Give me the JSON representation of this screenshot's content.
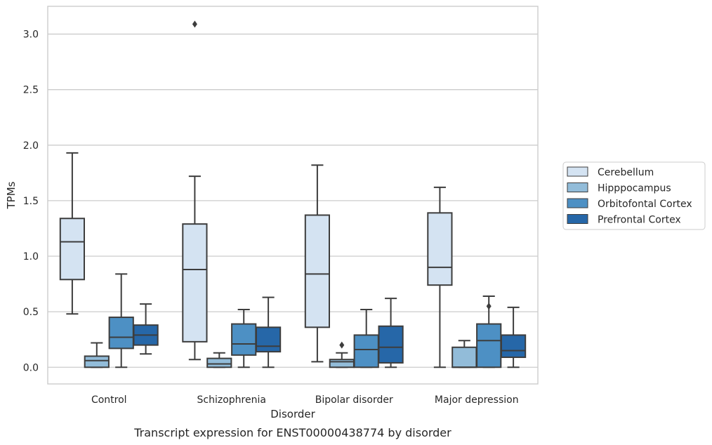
{
  "chart_data": {
    "type": "boxplot",
    "title": "",
    "caption": "Transcript expression for ENST00000438774 by disorder",
    "xlabel": "Disorder",
    "ylabel": "TPMs",
    "ylim": [
      -0.15,
      3.25
    ],
    "yticks": [
      "0.0",
      "0.5",
      "1.0",
      "1.5",
      "2.0",
      "2.5",
      "3.0"
    ],
    "ytick_values": [
      0,
      0.5,
      1.0,
      1.5,
      2.0,
      2.5,
      3.0
    ],
    "grid": "horizontal",
    "legend_position": "right",
    "categories": [
      "Control",
      "Schizophrenia",
      "Bipolar disorder",
      "Major depression"
    ],
    "series": [
      {
        "name": "Cerebellum",
        "color": "#d4e3f2",
        "boxes": [
          {
            "whislo": 0.48,
            "q1": 0.79,
            "med": 1.13,
            "q3": 1.34,
            "whishi": 1.93,
            "fliers": []
          },
          {
            "whislo": 0.07,
            "q1": 0.23,
            "med": 0.88,
            "q3": 1.29,
            "whishi": 1.72,
            "fliers": [
              3.09
            ]
          },
          {
            "whislo": 0.05,
            "q1": 0.36,
            "med": 0.84,
            "q3": 1.37,
            "whishi": 1.82,
            "fliers": []
          },
          {
            "whislo": 0.0,
            "q1": 0.74,
            "med": 0.9,
            "q3": 1.39,
            "whishi": 1.62,
            "fliers": []
          }
        ]
      },
      {
        "name": "Hipppocampus",
        "color": "#92bcd9",
        "boxes": [
          {
            "whislo": 0.0,
            "q1": 0.0,
            "med": 0.06,
            "q3": 0.1,
            "whishi": 0.22,
            "fliers": []
          },
          {
            "whislo": 0.0,
            "q1": 0.0,
            "med": 0.03,
            "q3": 0.08,
            "whishi": 0.13,
            "fliers": []
          },
          {
            "whislo": 0.0,
            "q1": 0.0,
            "med": 0.05,
            "q3": 0.07,
            "whishi": 0.13,
            "fliers": [
              0.2
            ]
          },
          {
            "whislo": 0.0,
            "q1": 0.0,
            "med": 0.0,
            "q3": 0.18,
            "whishi": 0.24,
            "fliers": []
          }
        ]
      },
      {
        "name": "Orbitofontal Cortex",
        "color": "#4d90c4",
        "boxes": [
          {
            "whislo": 0.0,
            "q1": 0.17,
            "med": 0.27,
            "q3": 0.45,
            "whishi": 0.84,
            "fliers": []
          },
          {
            "whislo": 0.0,
            "q1": 0.11,
            "med": 0.21,
            "q3": 0.39,
            "whishi": 0.52,
            "fliers": []
          },
          {
            "whislo": 0.0,
            "q1": 0.0,
            "med": 0.16,
            "q3": 0.29,
            "whishi": 0.52,
            "fliers": []
          },
          {
            "whislo": 0.0,
            "q1": 0.0,
            "med": 0.24,
            "q3": 0.39,
            "whishi": 0.64,
            "fliers": [
              0.55
            ]
          }
        ]
      },
      {
        "name": "Prefrontal Cortex",
        "color": "#2667a8",
        "boxes": [
          {
            "whislo": 0.12,
            "q1": 0.2,
            "med": 0.29,
            "q3": 0.38,
            "whishi": 0.57,
            "fliers": []
          },
          {
            "whislo": 0.0,
            "q1": 0.14,
            "med": 0.19,
            "q3": 0.36,
            "whishi": 0.63,
            "fliers": []
          },
          {
            "whislo": 0.0,
            "q1": 0.04,
            "med": 0.18,
            "q3": 0.37,
            "whishi": 0.62,
            "fliers": []
          },
          {
            "whislo": 0.0,
            "q1": 0.09,
            "med": 0.15,
            "q3": 0.29,
            "whishi": 0.54,
            "fliers": []
          }
        ]
      }
    ],
    "colors": {
      "box_edge": "#3d3d3d",
      "grid": "#cccccc",
      "frame": "#cccccc"
    }
  }
}
